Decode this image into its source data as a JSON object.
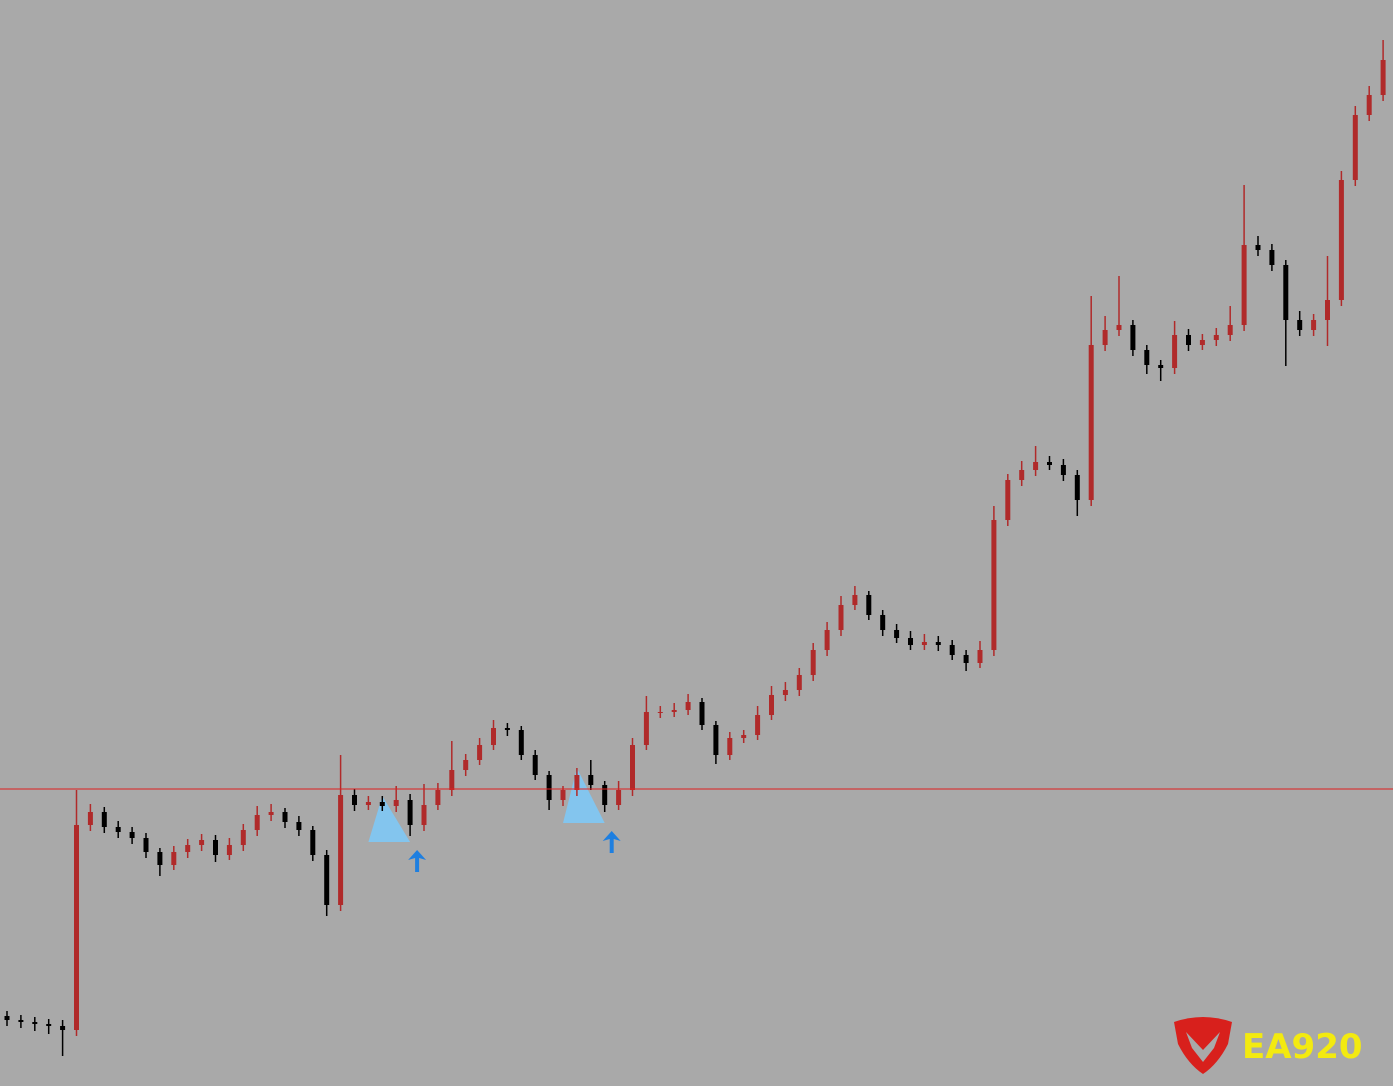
{
  "chart_data": {
    "type": "candlestick",
    "watermark": "EA920",
    "ylim": [
      0,
      1086
    ],
    "xlim": [
      0,
      100
    ],
    "up_color": "#b02a2a",
    "down_color": "#000000",
    "hline": 297,
    "hline_color": "#e02020",
    "open": [
      70,
      66,
      64,
      62,
      60,
      56,
      261,
      274,
      259,
      254,
      248,
      234,
      221,
      234,
      241,
      246,
      231,
      241,
      256,
      271,
      274,
      264,
      256,
      231,
      181,
      291,
      281,
      284,
      280,
      286,
      261,
      281,
      296,
      316,
      326,
      341,
      358,
      356,
      331,
      311,
      286,
      296,
      311,
      301,
      281,
      296,
      341,
      374,
      374,
      376,
      384,
      361,
      331,
      348,
      351,
      371,
      391,
      396,
      411,
      436,
      456,
      481,
      491,
      471,
      456,
      448,
      441,
      444,
      441,
      431,
      423,
      436,
      566,
      606,
      616,
      624,
      621,
      611,
      586,
      741,
      756,
      761,
      736,
      721,
      718,
      751,
      741,
      746,
      751,
      761,
      841,
      836,
      821,
      766,
      756,
      766,
      786,
      906,
      971,
      991
    ],
    "high": [
      75,
      71,
      69,
      67,
      66,
      296,
      282,
      279,
      265,
      259,
      253,
      238,
      240,
      247,
      252,
      251,
      248,
      262,
      280,
      282,
      278,
      270,
      260,
      236,
      331,
      297,
      290,
      290,
      300,
      292,
      302,
      303,
      345,
      332,
      348,
      366,
      363,
      360,
      336,
      315,
      300,
      318,
      326,
      305,
      305,
      348,
      390,
      380,
      383,
      392,
      388,
      365,
      354,
      356,
      380,
      400,
      404,
      418,
      443,
      464,
      490,
      500,
      495,
      476,
      462,
      455,
      452,
      450,
      446,
      436,
      445,
      580,
      612,
      625,
      640,
      630,
      627,
      616,
      790,
      770,
      810,
      766,
      741,
      726,
      765,
      757,
      752,
      758,
      780,
      901,
      850,
      842,
      826,
      775,
      772,
      830,
      915,
      980,
      1000,
      1046
    ],
    "low": [
      60,
      58,
      55,
      52,
      30,
      50,
      255,
      253,
      248,
      242,
      228,
      210,
      216,
      228,
      235,
      224,
      226,
      235,
      250,
      265,
      258,
      250,
      225,
      170,
      175,
      275,
      276,
      275,
      274,
      250,
      255,
      276,
      290,
      310,
      321,
      336,
      350,
      326,
      306,
      276,
      280,
      290,
      296,
      274,
      276,
      290,
      336,
      368,
      369,
      371,
      356,
      322,
      326,
      343,
      346,
      366,
      385,
      390,
      405,
      430,
      450,
      476,
      466,
      450,
      443,
      436,
      436,
      435,
      426,
      415,
      418,
      430,
      560,
      600,
      610,
      616,
      605,
      570,
      580,
      735,
      750,
      730,
      712,
      705,
      712,
      735,
      736,
      740,
      745,
      755,
      830,
      815,
      720,
      750,
      750,
      740,
      780,
      900,
      965,
      985
    ],
    "close": [
      66,
      64,
      62,
      60,
      56,
      261,
      274,
      259,
      254,
      248,
      234,
      221,
      234,
      241,
      246,
      231,
      241,
      256,
      271,
      274,
      264,
      256,
      231,
      181,
      291,
      281,
      284,
      280,
      286,
      261,
      281,
      296,
      316,
      326,
      341,
      358,
      356,
      331,
      311,
      286,
      296,
      311,
      301,
      281,
      296,
      341,
      374,
      374,
      376,
      384,
      361,
      331,
      348,
      351,
      371,
      391,
      396,
      411,
      436,
      456,
      481,
      491,
      471,
      456,
      448,
      441,
      444,
      441,
      431,
      423,
      436,
      566,
      606,
      616,
      624,
      621,
      611,
      586,
      741,
      756,
      761,
      736,
      721,
      718,
      751,
      741,
      746,
      751,
      761,
      841,
      836,
      821,
      766,
      756,
      766,
      786,
      906,
      971,
      991,
      1026
    ],
    "buy_signals": {
      "color": "#1e7fe0",
      "zone_color": "#7ec8f5",
      "x": [
        29,
        43
      ],
      "values": [
        236,
        255
      ]
    }
  }
}
